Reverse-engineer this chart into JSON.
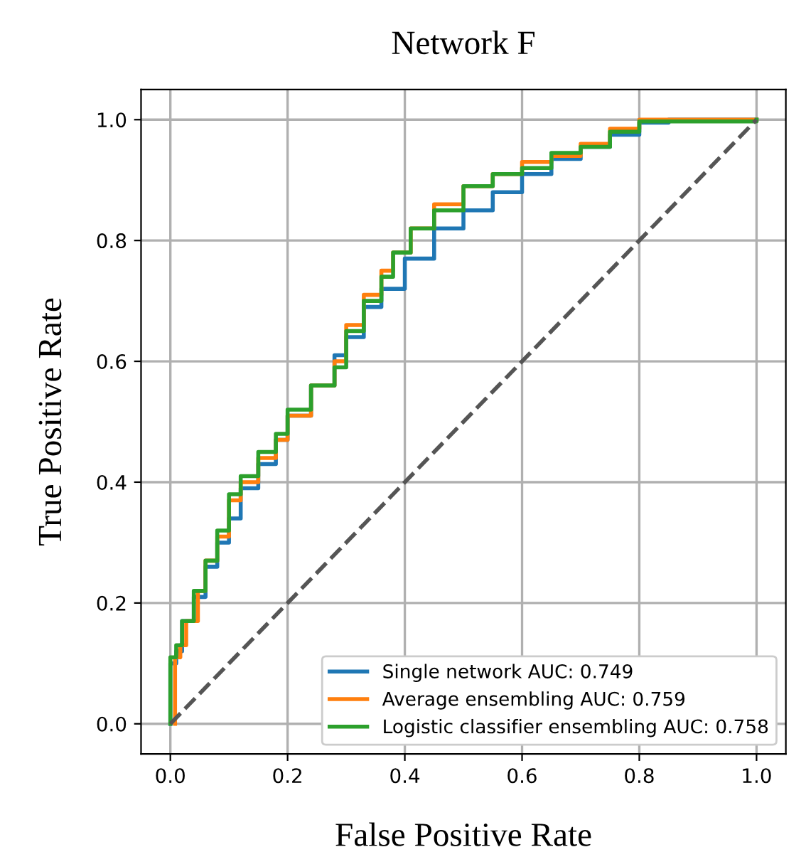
{
  "chart_data": {
    "type": "step",
    "title": "Network F",
    "xlabel": "False Positive Rate",
    "ylabel": "True Positive Rate",
    "xlim": [
      -0.05,
      1.05
    ],
    "ylim": [
      -0.05,
      1.05
    ],
    "xticks": [
      {
        "value": 0,
        "label": "0.0"
      },
      {
        "value": 0.2,
        "label": "0.2"
      },
      {
        "value": 0.4,
        "label": "0.4"
      },
      {
        "value": 0.6,
        "label": "0.6"
      },
      {
        "value": 0.8,
        "label": "0.8"
      },
      {
        "value": 1,
        "label": "1.0"
      }
    ],
    "yticks": [
      {
        "value": 0,
        "label": "0.0"
      },
      {
        "value": 0.2,
        "label": "0.2"
      },
      {
        "value": 0.4,
        "label": "0.4"
      },
      {
        "value": 0.6,
        "label": "0.6"
      },
      {
        "value": 0.8,
        "label": "0.8"
      },
      {
        "value": 1,
        "label": "1.0"
      }
    ],
    "grid": true,
    "legend": "bottom right",
    "series": [
      {
        "name": "Single network AUC: 0.749",
        "color": "#1f77b4",
        "x": [
          0,
          0,
          0.01,
          0.02,
          0.04,
          0.06,
          0.08,
          0.1,
          0.12,
          0.15,
          0.18,
          0.2,
          0.24,
          0.28,
          0.3,
          0.33,
          0.36,
          0.4,
          0.45,
          0.5,
          0.55,
          0.6,
          0.65,
          0.7,
          0.75,
          0.8,
          0.85,
          1
        ],
        "values": [
          0,
          0.1,
          0.12,
          0.17,
          0.21,
          0.26,
          0.3,
          0.34,
          0.39,
          0.43,
          0.47,
          0.51,
          0.56,
          0.61,
          0.64,
          0.69,
          0.72,
          0.77,
          0.82,
          0.85,
          0.88,
          0.91,
          0.935,
          0.955,
          0.975,
          0.995,
          1,
          1
        ]
      },
      {
        "name": "Average ensembling AUC: 0.759",
        "color": "#ff7f0e",
        "x": [
          0.008,
          0.008,
          0.017,
          0.027,
          0.047,
          0.06,
          0.08,
          0.1,
          0.12,
          0.15,
          0.18,
          0.2,
          0.24,
          0.28,
          0.3,
          0.33,
          0.36,
          0.38,
          0.41,
          0.45,
          0.5,
          0.55,
          0.6,
          0.65,
          0.7,
          0.75,
          0.8,
          1
        ],
        "values": [
          0,
          0.11,
          0.13,
          0.17,
          0.22,
          0.27,
          0.31,
          0.37,
          0.4,
          0.44,
          0.47,
          0.51,
          0.56,
          0.6,
          0.66,
          0.71,
          0.75,
          0.78,
          0.82,
          0.86,
          0.89,
          0.91,
          0.93,
          0.94,
          0.96,
          0.985,
          1,
          1
        ]
      },
      {
        "name": "Logistic classifier ensembling AUC: 0.758",
        "color": "#2ca02c",
        "x": [
          0,
          0,
          0.01,
          0.02,
          0.04,
          0.06,
          0.08,
          0.1,
          0.12,
          0.15,
          0.18,
          0.2,
          0.24,
          0.28,
          0.3,
          0.33,
          0.36,
          0.38,
          0.41,
          0.45,
          0.5,
          0.55,
          0.6,
          0.65,
          0.7,
          0.75,
          0.8,
          1
        ],
        "values": [
          0,
          0.11,
          0.13,
          0.17,
          0.22,
          0.27,
          0.32,
          0.38,
          0.41,
          0.45,
          0.48,
          0.52,
          0.56,
          0.59,
          0.65,
          0.7,
          0.74,
          0.78,
          0.82,
          0.85,
          0.89,
          0.91,
          0.92,
          0.945,
          0.955,
          0.98,
          0.997,
          1
        ]
      },
      {
        "type": "line",
        "color": "#555555",
        "line_style": "dashed",
        "x": [
          0,
          1
        ],
        "values": [
          0,
          1
        ]
      }
    ]
  }
}
